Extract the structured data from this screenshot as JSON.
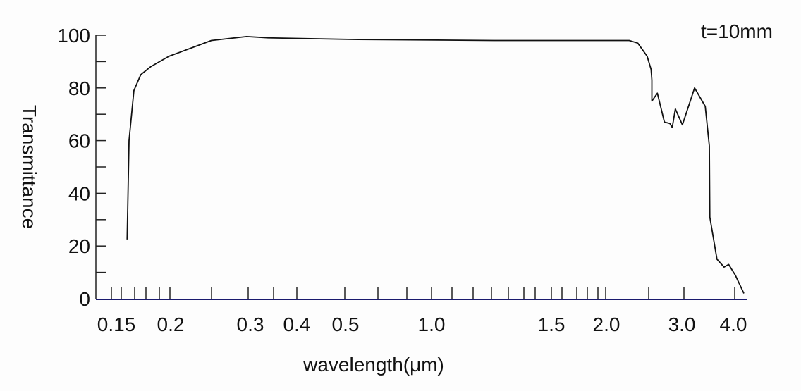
{
  "chart_data": {
    "type": "line",
    "title": "",
    "annotation": "t=10mm",
    "xlabel": "wavelength(μm)",
    "ylabel": "Transmittance",
    "x_scale": "nonlinear (compressed, log-like)",
    "ylim": [
      0,
      100
    ],
    "xlim": [
      0.14,
      4.3
    ],
    "x_ticks": [
      0.15,
      0.2,
      0.3,
      0.4,
      0.5,
      1.0,
      1.5,
      2.0,
      3.0,
      4.0
    ],
    "x_tick_labels": [
      "0.15",
      "0.2",
      "0.3",
      "0.4",
      "0.5",
      "1.0",
      "1.5",
      "2.0",
      "3.0",
      "4.0"
    ],
    "y_ticks": [
      0,
      20,
      40,
      60,
      80,
      100
    ],
    "y_tick_labels": [
      "0",
      "20",
      "40",
      "60",
      "80",
      "100"
    ],
    "grid": false,
    "line_color": "#111111",
    "axis_color": "#1a1a6e",
    "series": [
      {
        "x": [
          0.156,
          0.158,
          0.163,
          0.17,
          0.18,
          0.199,
          0.253,
          0.298,
          0.341,
          0.545,
          1.26,
          2.19,
          2.3,
          2.41,
          2.53,
          2.58,
          2.59,
          2.59,
          2.66,
          2.75,
          2.82,
          2.85,
          2.89,
          2.98,
          3.21,
          3.42,
          3.5,
          3.51,
          3.65,
          3.79,
          3.88,
          4.01,
          4.18
        ],
        "y": [
          22.5,
          60,
          79,
          85,
          88,
          92,
          98,
          99.5,
          99,
          98.4,
          98,
          98,
          98,
          97,
          92,
          87,
          83,
          75,
          78,
          67,
          66.5,
          65,
          72,
          66,
          80,
          73,
          58,
          31,
          15,
          12,
          13,
          9,
          2
        ]
      }
    ]
  }
}
